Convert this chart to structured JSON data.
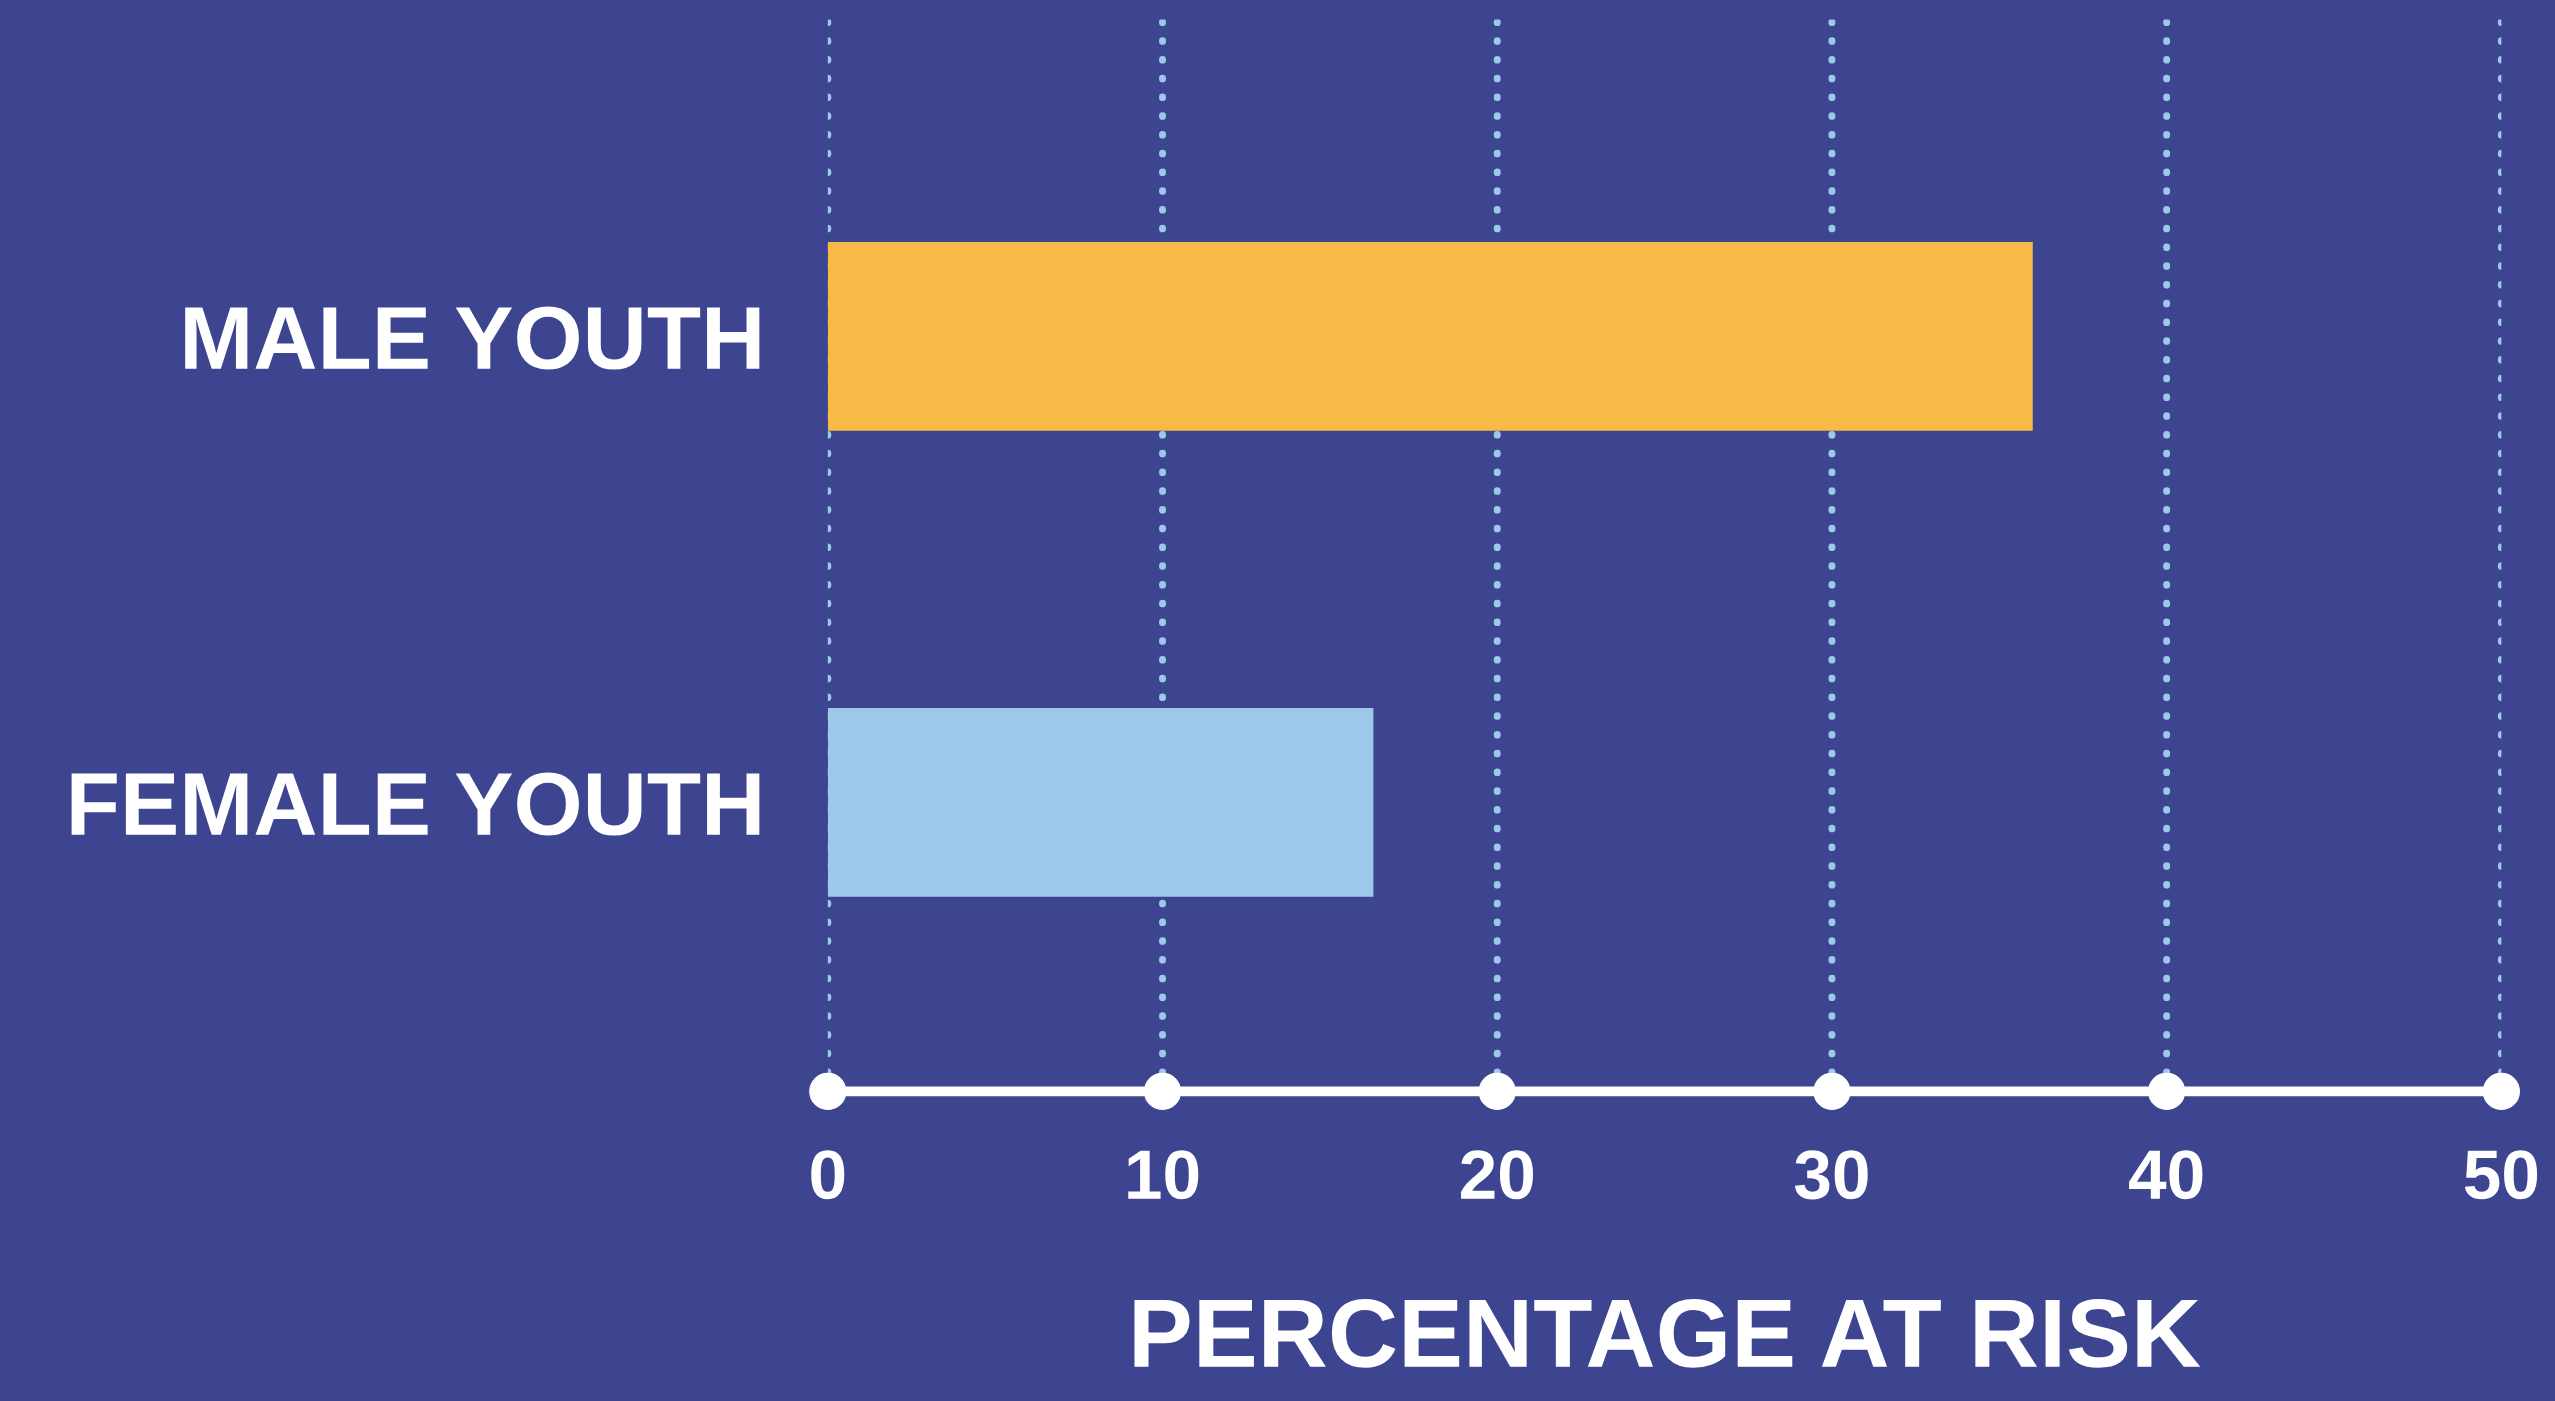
{
  "chart_data": {
    "type": "bar",
    "orientation": "horizontal",
    "xlabel": "PERCENTAGE AT RISK",
    "categories": [
      "MALE YOUTH",
      "FEMALE YOUTH"
    ],
    "values": [
      36,
      16.3
    ],
    "colors": [
      "#f8b947",
      "#9dc8ea"
    ],
    "xlim": [
      0,
      50
    ],
    "xticks": [
      0,
      10,
      20,
      30,
      40,
      50
    ],
    "grid": "x"
  }
}
